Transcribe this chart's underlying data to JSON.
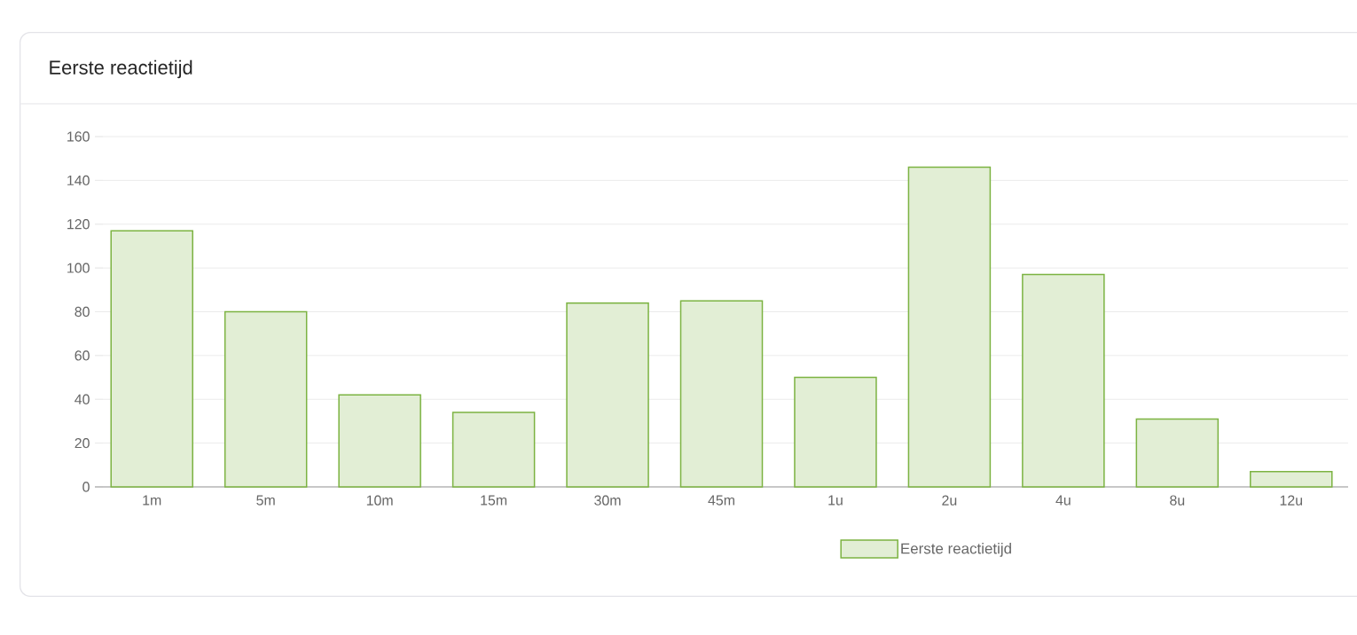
{
  "chart_data": {
    "type": "bar",
    "title": "Eerste reactietijd",
    "categories": [
      "1m",
      "5m",
      "10m",
      "15m",
      "30m",
      "45m",
      "1u",
      "2u",
      "4u",
      "8u",
      "12u"
    ],
    "series": [
      {
        "name": "Eerste reactietijd",
        "color": "#7cb342",
        "values": [
          117,
          80,
          42,
          34,
          84,
          85,
          50,
          146,
          97,
          31,
          7
        ]
      }
    ],
    "ylim": [
      0,
      160
    ],
    "yticks": [
      0,
      20,
      40,
      60,
      80,
      100,
      120,
      140,
      160
    ],
    "grid": "y",
    "legend": "bottom"
  }
}
